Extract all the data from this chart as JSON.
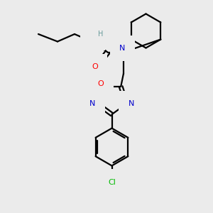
{
  "bg_color": "#ebebeb",
  "atom_colors": {
    "C": "#000000",
    "N": "#0000cc",
    "O": "#ff0000",
    "Cl": "#00bb00",
    "H": "#669999"
  },
  "bond_color": "#000000",
  "bond_width": 1.6
}
